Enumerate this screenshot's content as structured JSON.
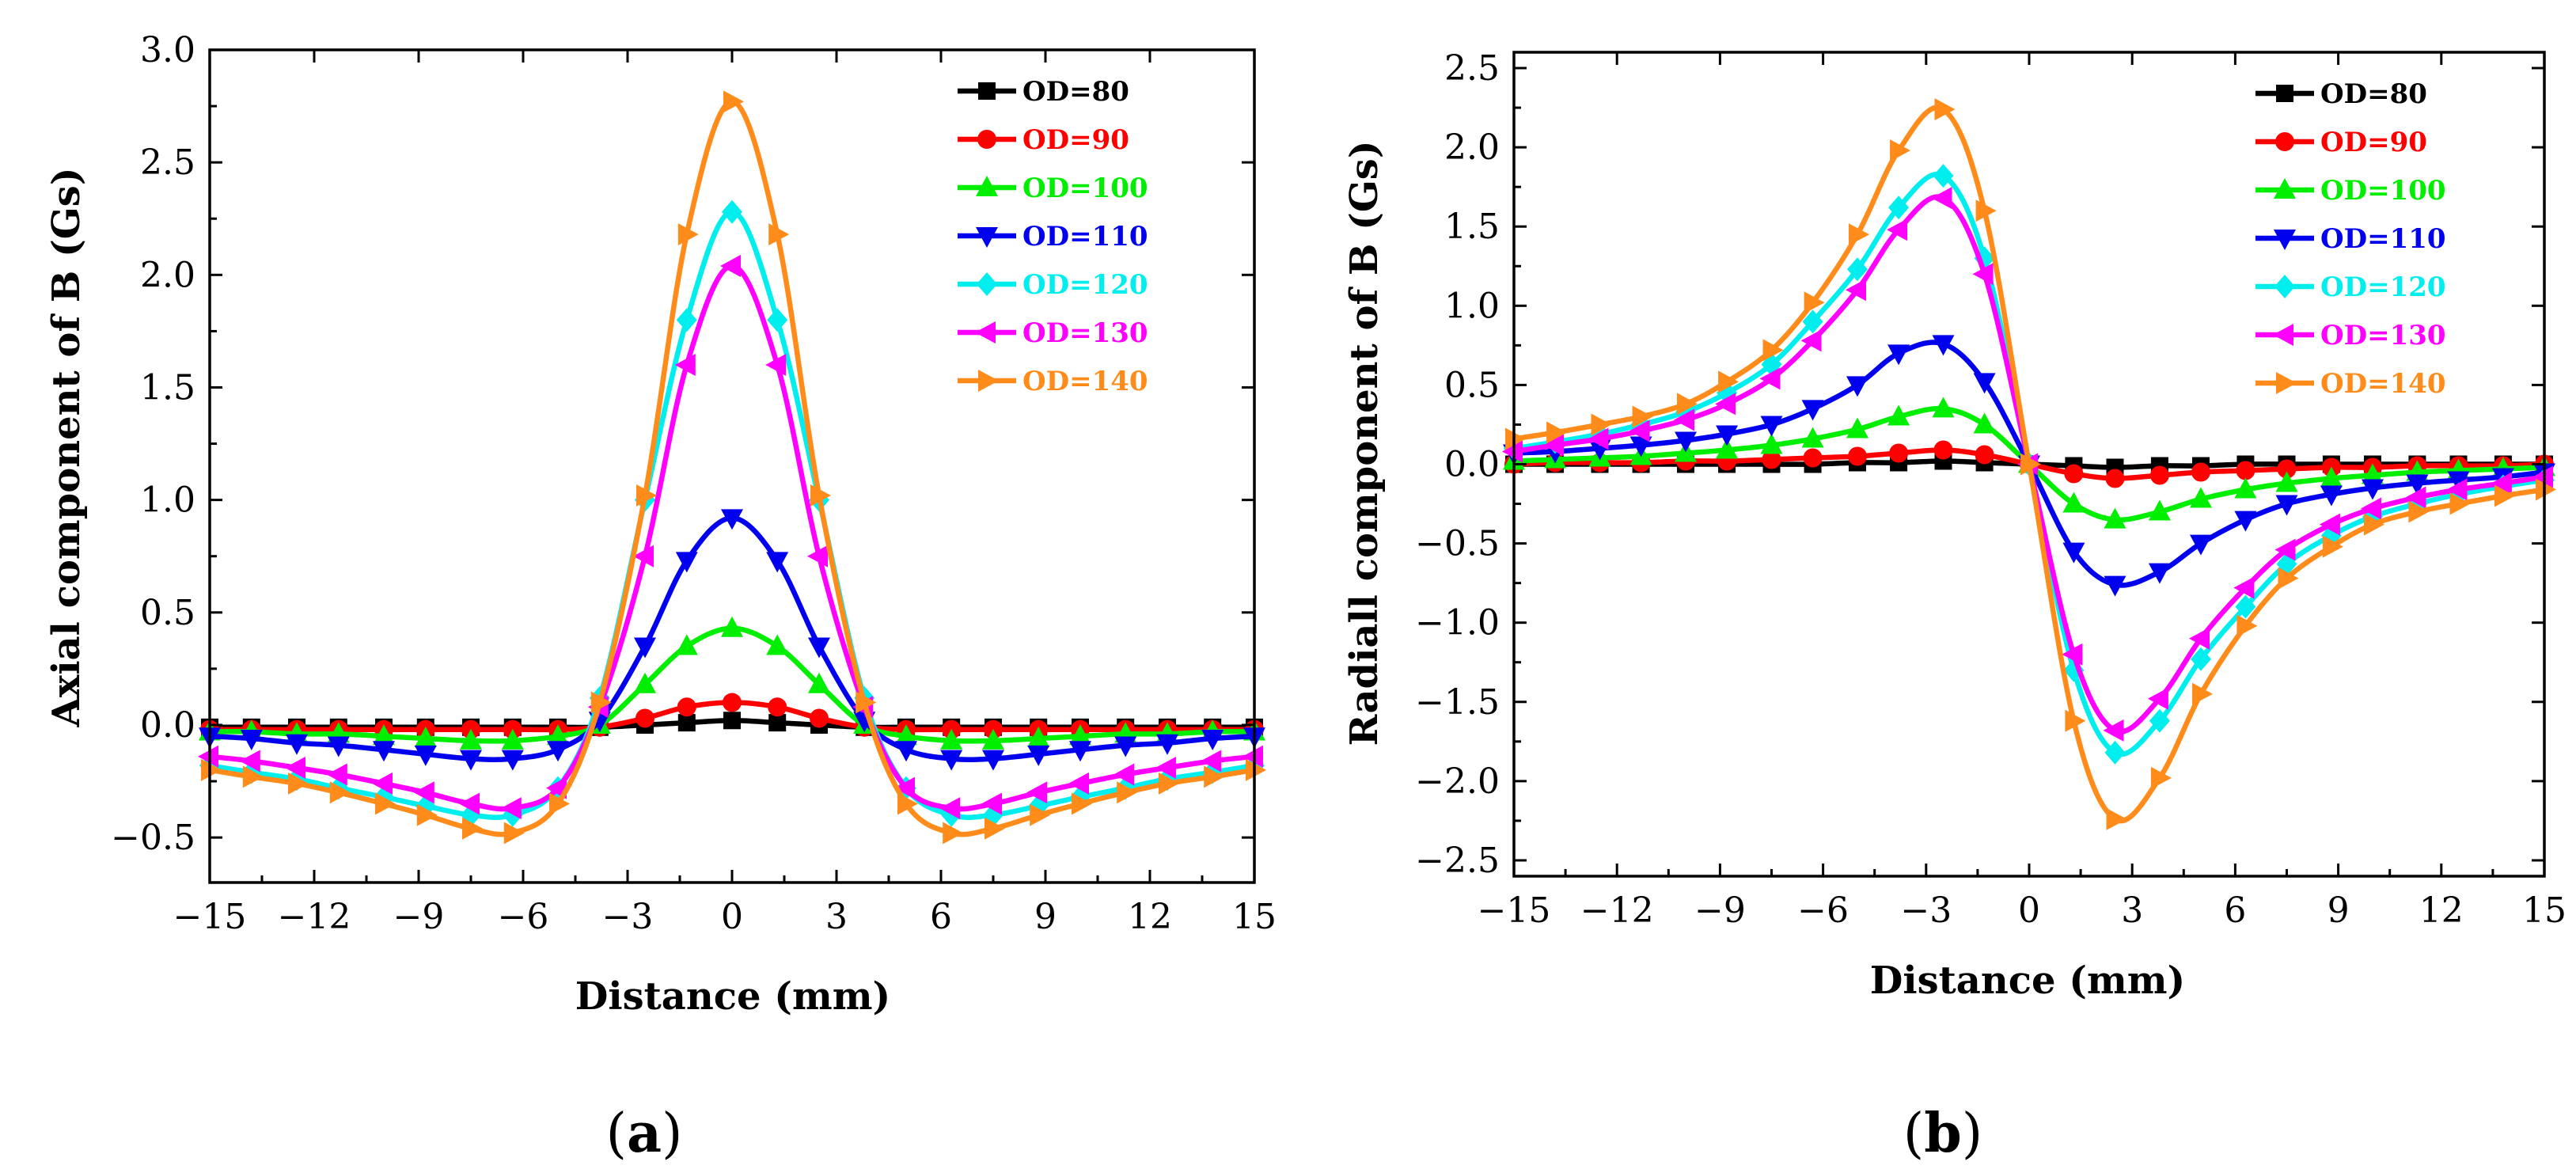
{
  "chart_data": [
    {
      "type": "line",
      "panel_label": "a",
      "xlabel": "Distance (mm)",
      "ylabel": "Axial component of B (Gs)",
      "xlim": [
        -15,
        15
      ],
      "ylim": [
        -0.7,
        3.0
      ],
      "xticks": [
        -15,
        -12,
        -9,
        -6,
        -3,
        0,
        3,
        6,
        9,
        12,
        15
      ],
      "xtick_labels": [
        "−15",
        "−12",
        "−9",
        "−6",
        "−3",
        "0",
        "3",
        "6",
        "9",
        "12",
        "15"
      ],
      "yticks": [
        -0.5,
        0.0,
        0.5,
        1.0,
        1.5,
        2.0,
        2.5,
        3.0
      ],
      "ytick_labels": [
        "−0.5",
        "0.0",
        "0.5",
        "1.0",
        "1.5",
        "2.0",
        "2.5",
        "3.0"
      ],
      "legend_position": "top-right",
      "x": [
        -15,
        -13.8,
        -12.5,
        -11.3,
        -10,
        -8.8,
        -7.5,
        -6.3,
        -5,
        -3.8,
        -2.5,
        -1.3,
        0,
        1.3,
        2.5,
        3.8,
        5,
        6.3,
        7.5,
        8.8,
        10,
        11.3,
        12.5,
        13.8,
        15
      ],
      "series": [
        {
          "name": "OD=80",
          "color": "#000000",
          "marker": "square",
          "values": [
            -0.01,
            -0.01,
            -0.01,
            -0.01,
            -0.01,
            -0.01,
            -0.01,
            -0.01,
            -0.01,
            -0.01,
            0.0,
            0.01,
            0.02,
            0.01,
            0.0,
            -0.01,
            -0.01,
            -0.01,
            -0.01,
            -0.01,
            -0.01,
            -0.01,
            -0.01,
            -0.01,
            -0.01
          ]
        },
        {
          "name": "OD=90",
          "color": "#ff0000",
          "marker": "circle",
          "values": [
            -0.02,
            -0.02,
            -0.02,
            -0.02,
            -0.02,
            -0.02,
            -0.02,
            -0.02,
            -0.02,
            -0.01,
            0.03,
            0.08,
            0.1,
            0.08,
            0.03,
            -0.01,
            -0.02,
            -0.02,
            -0.02,
            -0.02,
            -0.02,
            -0.02,
            -0.02,
            -0.02,
            -0.02
          ]
        },
        {
          "name": "OD=100",
          "color": "#00ee00",
          "marker": "triangle-up",
          "values": [
            -0.03,
            -0.03,
            -0.04,
            -0.04,
            -0.05,
            -0.06,
            -0.07,
            -0.07,
            -0.05,
            0.0,
            0.18,
            0.35,
            0.43,
            0.35,
            0.18,
            0.0,
            -0.05,
            -0.07,
            -0.07,
            -0.06,
            -0.05,
            -0.04,
            -0.04,
            -0.03,
            -0.03
          ]
        },
        {
          "name": "OD=110",
          "color": "#0000ee",
          "marker": "triangle-down",
          "values": [
            -0.05,
            -0.06,
            -0.08,
            -0.09,
            -0.11,
            -0.13,
            -0.15,
            -0.15,
            -0.11,
            0.02,
            0.35,
            0.73,
            0.92,
            0.73,
            0.35,
            0.02,
            -0.11,
            -0.15,
            -0.15,
            -0.13,
            -0.11,
            -0.09,
            -0.08,
            -0.06,
            -0.05
          ]
        },
        {
          "name": "OD=120",
          "color": "#00eeee",
          "marker": "diamond",
          "values": [
            -0.18,
            -0.21,
            -0.24,
            -0.28,
            -0.32,
            -0.36,
            -0.4,
            -0.4,
            -0.28,
            0.12,
            1.0,
            1.8,
            2.28,
            1.8,
            1.0,
            0.12,
            -0.28,
            -0.4,
            -0.4,
            -0.36,
            -0.32,
            -0.28,
            -0.24,
            -0.21,
            -0.18
          ]
        },
        {
          "name": "OD=130",
          "color": "#ff00ff",
          "marker": "triangle-left",
          "values": [
            -0.14,
            -0.16,
            -0.19,
            -0.22,
            -0.26,
            -0.3,
            -0.35,
            -0.37,
            -0.28,
            0.08,
            0.75,
            1.6,
            2.04,
            1.6,
            0.75,
            0.08,
            -0.28,
            -0.37,
            -0.35,
            -0.3,
            -0.26,
            -0.22,
            -0.19,
            -0.16,
            -0.14
          ]
        },
        {
          "name": "OD=140",
          "color": "#ff8c1a",
          "marker": "triangle-right",
          "values": [
            -0.2,
            -0.23,
            -0.26,
            -0.3,
            -0.35,
            -0.4,
            -0.46,
            -0.48,
            -0.35,
            0.1,
            1.02,
            2.18,
            2.77,
            2.18,
            1.02,
            0.1,
            -0.35,
            -0.48,
            -0.46,
            -0.4,
            -0.35,
            -0.3,
            -0.26,
            -0.23,
            -0.2
          ]
        }
      ]
    },
    {
      "type": "line",
      "panel_label": "b",
      "xlabel": "Distance (mm)",
      "ylabel": "Radiall component of B (Gs)",
      "xlim": [
        -15,
        15
      ],
      "ylim": [
        -2.6,
        2.6
      ],
      "xticks": [
        -15,
        -12,
        -9,
        -6,
        -3,
        0,
        3,
        6,
        9,
        12,
        15
      ],
      "xtick_labels": [
        "−15",
        "−12",
        "−9",
        "−6",
        "−3",
        "0",
        "3",
        "6",
        "9",
        "12",
        "15"
      ],
      "yticks": [
        -2.5,
        -2.0,
        -1.5,
        -1.0,
        -0.5,
        0.0,
        0.5,
        1.0,
        1.5,
        2.0,
        2.5
      ],
      "ytick_labels": [
        "−2.5",
        "−2.0",
        "−1.5",
        "−1.0",
        "−0.5",
        "0.0",
        "0.5",
        "1.0",
        "1.5",
        "2.0",
        "2.5"
      ],
      "legend_position": "top-right",
      "x": [
        -15,
        -13.8,
        -12.5,
        -11.3,
        -10,
        -8.8,
        -7.5,
        -6.3,
        -5,
        -3.8,
        -2.5,
        -1.3,
        0,
        1.3,
        2.5,
        3.8,
        5,
        6.3,
        7.5,
        8.8,
        10,
        11.3,
        12.5,
        13.8,
        15
      ],
      "series": [
        {
          "name": "OD=80",
          "color": "#000000",
          "marker": "square",
          "values": [
            0.0,
            0.0,
            0.0,
            0.0,
            0.0,
            0.0,
            0.0,
            0.0,
            0.01,
            0.01,
            0.02,
            0.01,
            0.0,
            -0.01,
            -0.02,
            -0.01,
            -0.01,
            0.0,
            0.0,
            0.0,
            0.0,
            0.0,
            0.0,
            0.0,
            0.0
          ]
        },
        {
          "name": "OD=90",
          "color": "#ff0000",
          "marker": "circle",
          "values": [
            0.0,
            0.01,
            0.01,
            0.01,
            0.02,
            0.02,
            0.03,
            0.04,
            0.05,
            0.07,
            0.09,
            0.06,
            0.0,
            -0.06,
            -0.09,
            -0.07,
            -0.05,
            -0.04,
            -0.03,
            -0.02,
            -0.02,
            -0.01,
            -0.01,
            -0.01,
            0.0
          ]
        },
        {
          "name": "OD=100",
          "color": "#00ee00",
          "marker": "triangle-up",
          "values": [
            0.02,
            0.03,
            0.04,
            0.05,
            0.07,
            0.09,
            0.12,
            0.16,
            0.22,
            0.3,
            0.35,
            0.25,
            0.0,
            -0.25,
            -0.35,
            -0.3,
            -0.22,
            -0.16,
            -0.12,
            -0.09,
            -0.07,
            -0.05,
            -0.04,
            -0.03,
            -0.02
          ]
        },
        {
          "name": "OD=110",
          "color": "#0000ee",
          "marker": "triangle-down",
          "values": [
            0.07,
            0.08,
            0.1,
            0.12,
            0.15,
            0.19,
            0.25,
            0.35,
            0.5,
            0.7,
            0.76,
            0.52,
            0.0,
            -0.55,
            -0.76,
            -0.68,
            -0.5,
            -0.35,
            -0.25,
            -0.19,
            -0.15,
            -0.12,
            -0.1,
            -0.08,
            -0.05
          ]
        },
        {
          "name": "OD=120",
          "color": "#00eeee",
          "marker": "diamond",
          "values": [
            0.1,
            0.14,
            0.19,
            0.25,
            0.33,
            0.45,
            0.63,
            0.9,
            1.23,
            1.62,
            1.82,
            1.3,
            0.0,
            -1.3,
            -1.82,
            -1.62,
            -1.23,
            -0.9,
            -0.63,
            -0.45,
            -0.33,
            -0.25,
            -0.19,
            -0.14,
            -0.1
          ]
        },
        {
          "name": "OD=130",
          "color": "#ff00ff",
          "marker": "triangle-left",
          "values": [
            0.08,
            0.12,
            0.16,
            0.21,
            0.28,
            0.38,
            0.54,
            0.78,
            1.1,
            1.48,
            1.68,
            1.2,
            0.0,
            -1.2,
            -1.68,
            -1.48,
            -1.1,
            -0.78,
            -0.54,
            -0.38,
            -0.28,
            -0.21,
            -0.16,
            -0.12,
            -0.08
          ]
        },
        {
          "name": "OD=140",
          "color": "#ff8c1a",
          "marker": "triangle-right",
          "values": [
            0.16,
            0.2,
            0.25,
            0.3,
            0.38,
            0.52,
            0.72,
            1.02,
            1.45,
            1.98,
            2.24,
            1.6,
            0.0,
            -1.62,
            -2.24,
            -1.98,
            -1.45,
            -1.02,
            -0.72,
            -0.52,
            -0.38,
            -0.3,
            -0.25,
            -0.2,
            -0.16
          ]
        }
      ]
    }
  ]
}
